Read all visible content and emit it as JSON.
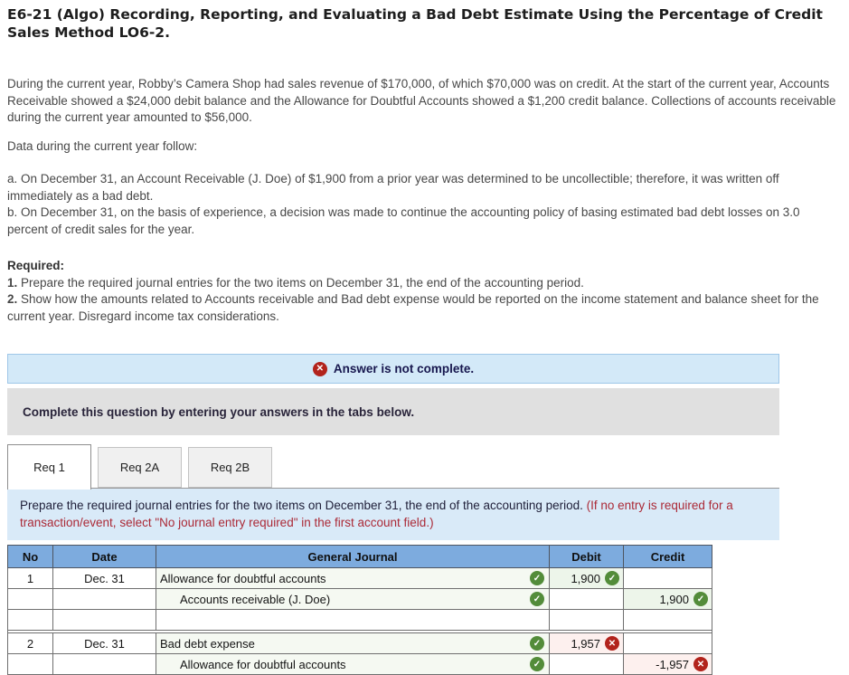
{
  "header": {
    "title": "E6-21 (Algo) Recording, Reporting, and Evaluating a Bad Debt Estimate Using the Percentage of Credit Sales Method LO6-2."
  },
  "problem": {
    "intro": "During the current year, Robby’s Camera Shop had sales revenue of $170,000, of which $70,000 was on credit. At the start of the current year, Accounts Receivable showed a $24,000 debit balance and the Allowance for Doubtful Accounts showed a $1,200 credit balance. Collections of accounts receivable during the current year amounted to $56,000.",
    "data_line": "Data during the current year follow:",
    "item_a": "a. On December 31, an Account Receivable (J. Doe) of $1,900 from a prior year was determined to be uncollectible; therefore, it was written off immediately as a bad debt.",
    "item_b": "b. On December 31, on the basis of experience, a decision was made to continue the accounting policy of basing estimated bad debt losses on 3.0 percent of credit sales for the year.",
    "required_label": "Required:",
    "req1_num": "1.",
    "req1_text": "Prepare the required journal entries for the two items on December 31, the end of the accounting period.",
    "req2_num": "2.",
    "req2_text": "Show how the amounts related to Accounts receivable and Bad debt expense would be reported on the income statement and balance sheet for the current year. Disregard income tax considerations."
  },
  "status_banner": {
    "text": "Answer is not complete.",
    "icon": "red-x-circle"
  },
  "gray_panel": {
    "text": "Complete this question by entering your answers in the tabs below."
  },
  "tabs": [
    {
      "label": "Req 1",
      "active": true
    },
    {
      "label": "Req 2A",
      "active": false
    },
    {
      "label": "Req 2B",
      "active": false
    }
  ],
  "tab_instruction": {
    "normal": "Prepare the required journal entries for the two items on December 31, the end of the accounting period. ",
    "red": "(If no entry is required for a transaction/event, select \"No journal entry required\" in the first account field.)"
  },
  "journal_table": {
    "columns": [
      "No",
      "Date",
      "General Journal",
      "Debit",
      "Credit"
    ],
    "rows": [
      {
        "no": "1",
        "date": "Dec. 31",
        "account": "Allowance for doubtful accounts",
        "indent": false,
        "account_status": "correct",
        "debit": "1,900",
        "debit_status": "correct",
        "credit": "",
        "credit_status": ""
      },
      {
        "no": "",
        "date": "",
        "account": "Accounts receivable (J. Doe)",
        "indent": true,
        "account_status": "correct",
        "debit": "",
        "debit_status": "",
        "credit": "1,900",
        "credit_status": "correct"
      },
      {
        "spacer": true
      },
      {
        "gap": true
      },
      {
        "no": "2",
        "date": "Dec. 31",
        "account": "Bad debt expense",
        "indent": false,
        "account_status": "correct",
        "debit": "1,957",
        "debit_status": "incorrect",
        "credit": "",
        "credit_status": ""
      },
      {
        "no": "",
        "date": "",
        "account": "Allowance for doubtful accounts",
        "indent": true,
        "account_status": "correct",
        "debit": "",
        "debit_status": "",
        "credit": "-1,957",
        "credit_status": "incorrect"
      }
    ]
  },
  "colors": {
    "table_header_blue": "#7dabde",
    "panel_blue": "#d9eaf8",
    "banner_blue": "#d3e9f8",
    "banner_border": "#9fc7e8",
    "gray_panel": "#e0e0e0",
    "correct_green": "#538c3a",
    "incorrect_red": "#b2231c",
    "correct_cell_bg": "#edf5ea",
    "incorrect_cell_bg": "#fdf0ee",
    "account_cell_bg": "#f5f9f2",
    "red_text": "#ab2936"
  }
}
